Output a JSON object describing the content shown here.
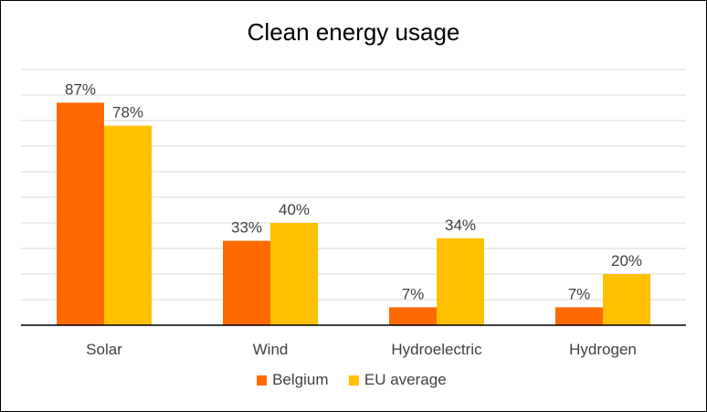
{
  "chart_data": {
    "type": "bar",
    "title": "Clean energy usage",
    "categories": [
      "Solar",
      "Wind",
      "Hydroelectric",
      "Hydrogen"
    ],
    "series": [
      {
        "name": "Belgium",
        "values": [
          87,
          33,
          7,
          7
        ],
        "labels": [
          "87%",
          "33%",
          "7%",
          "7%"
        ],
        "color": "#FF6A00"
      },
      {
        "name": "EU average",
        "values": [
          78,
          40,
          34,
          20
        ],
        "labels": [
          "78%",
          "40%",
          "34%",
          "20%"
        ],
        "color": "#FFC000"
      }
    ],
    "ylim": [
      0,
      100
    ],
    "y_axis_labels": false,
    "grid": true,
    "legend": "bottom"
  }
}
